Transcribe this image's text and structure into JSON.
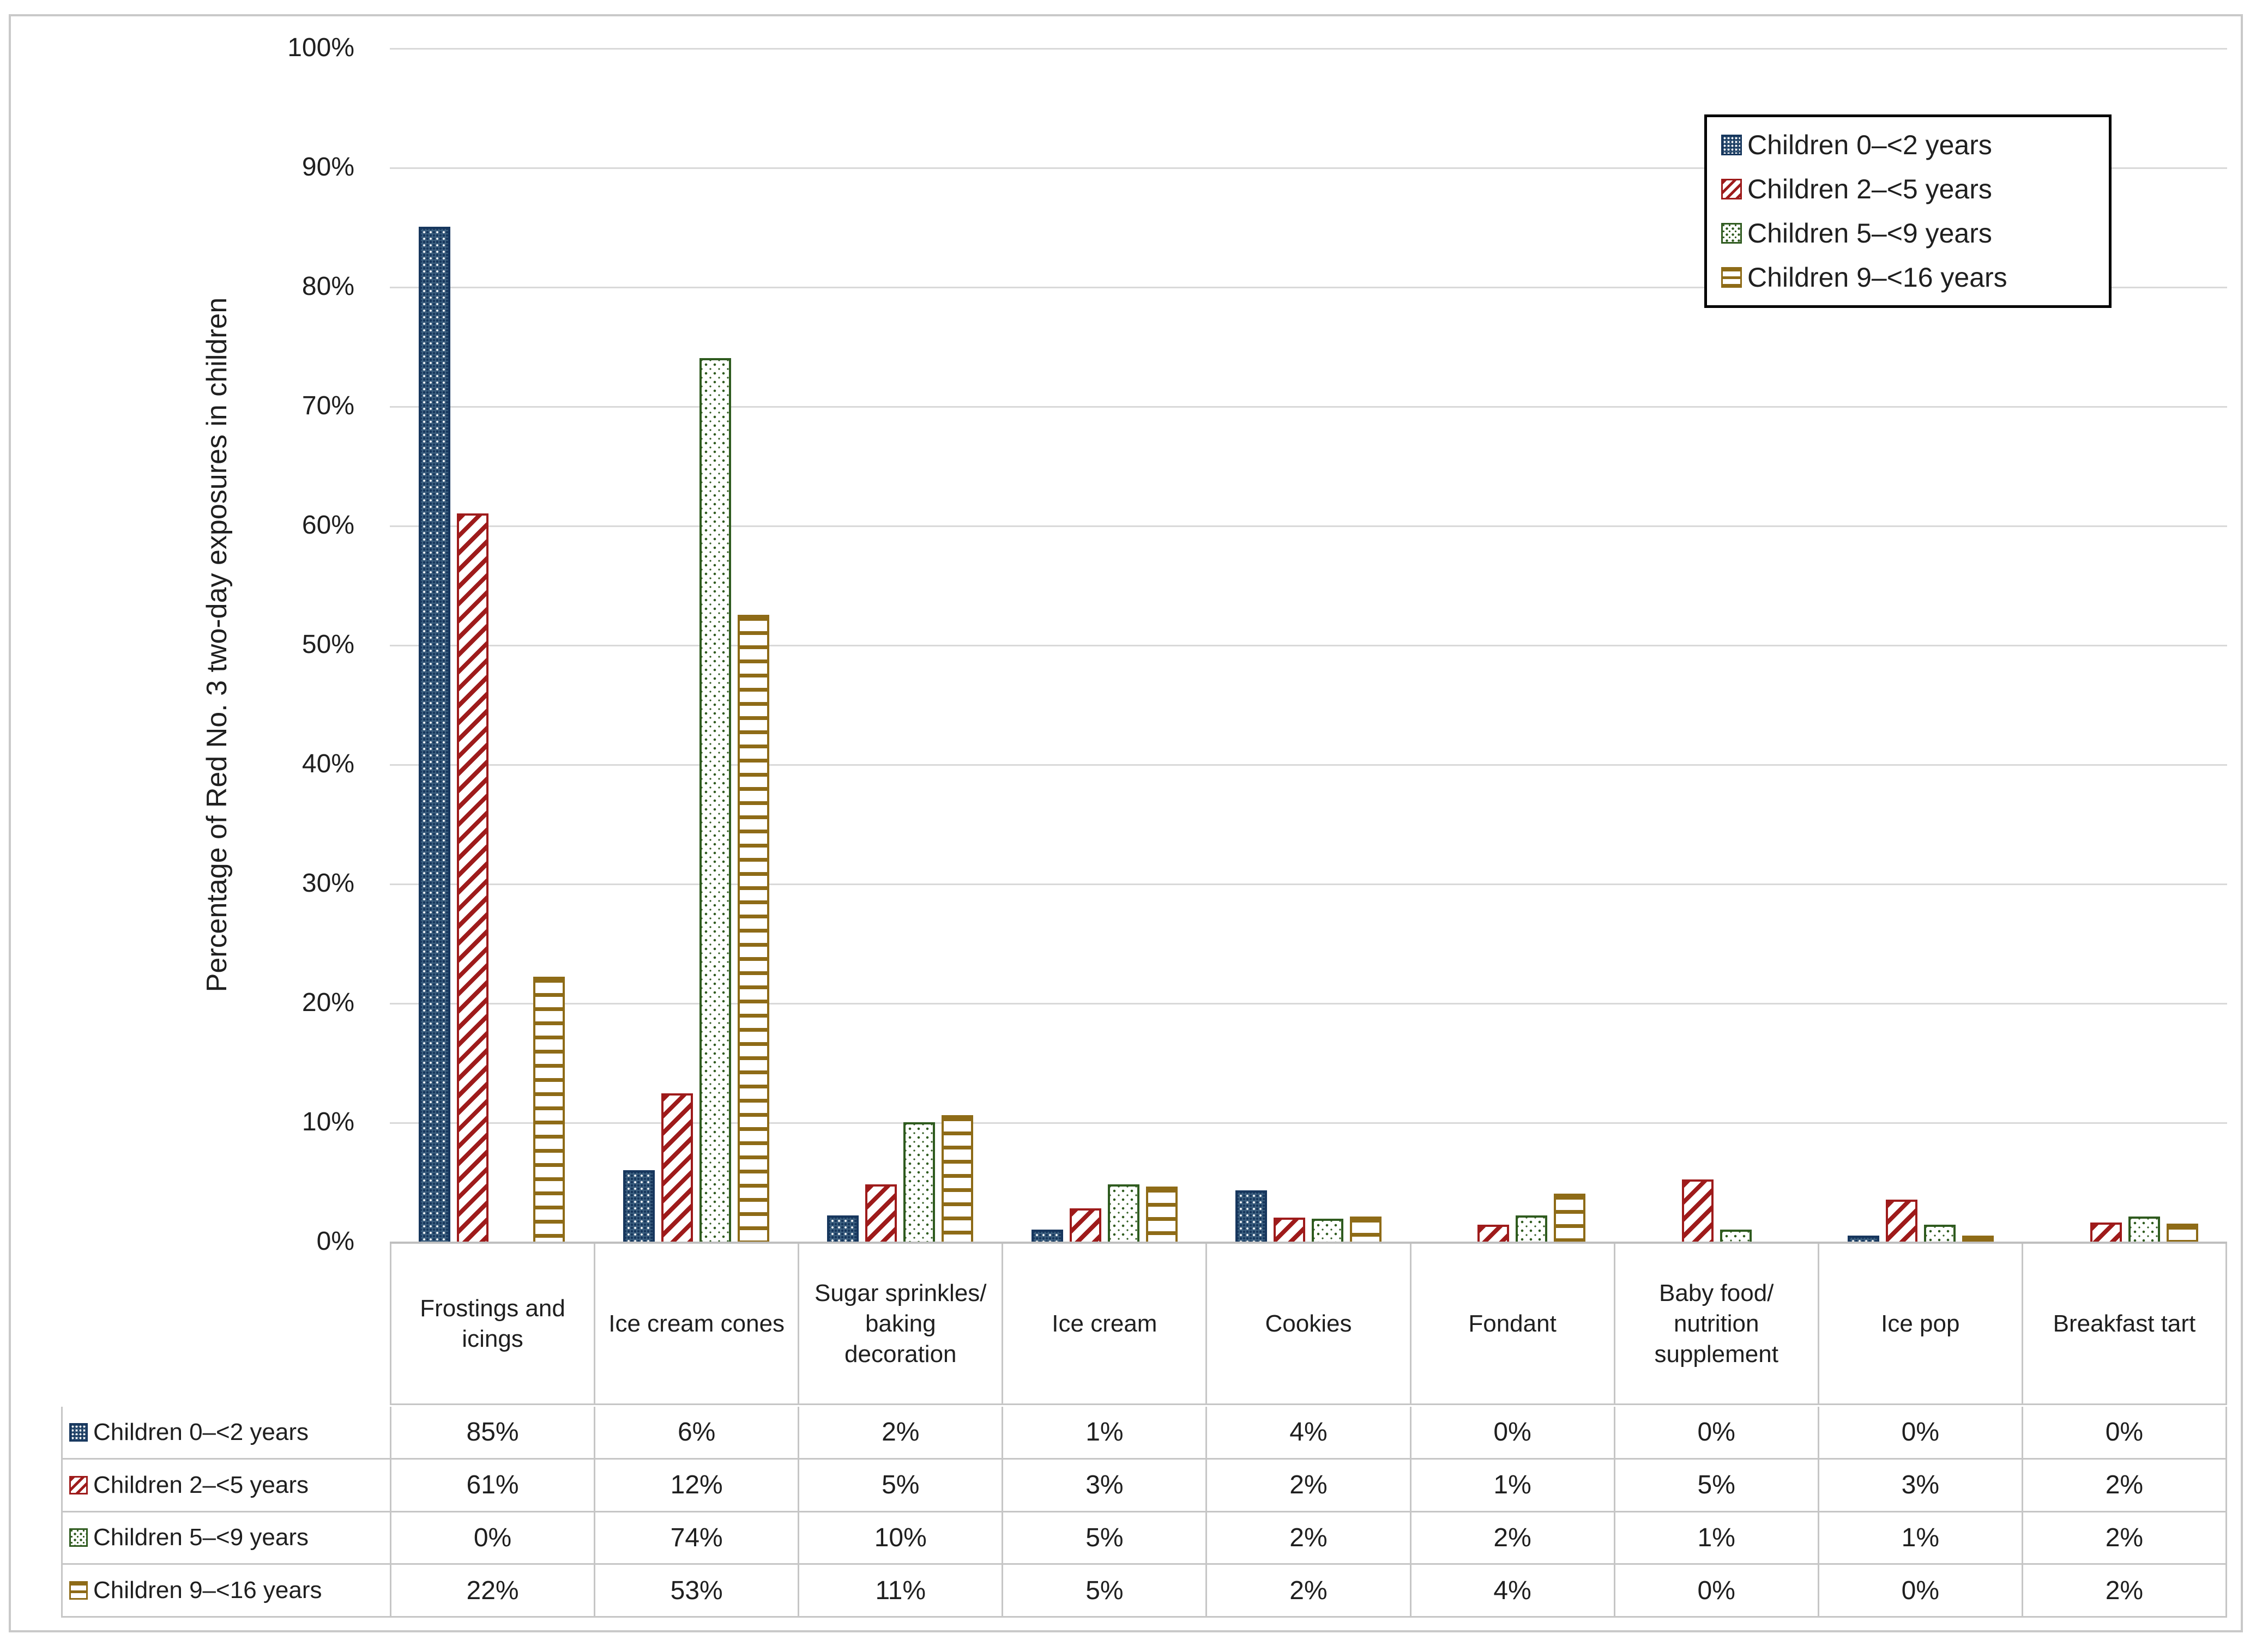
{
  "chart_data": {
    "type": "bar",
    "title": "",
    "xlabel": "",
    "ylabel": "Percentage of Red No. 3 two-day exposures in children",
    "ylim": [
      0,
      100
    ],
    "yticks": [
      "100%",
      "90%",
      "80%",
      "70%",
      "60%",
      "50%",
      "40%",
      "30%",
      "20%",
      "10%",
      "0%"
    ],
    "grid": "horizontal",
    "legend_position": "top-right",
    "categories": [
      "Frostings and icings",
      "Ice cream cones",
      "Sugar sprinkles/ baking decoration",
      "Ice cream",
      "Cookies",
      "Fondant",
      "Baby food/ nutrition supplement",
      "Ice pop",
      "Breakfast tart"
    ],
    "series": [
      {
        "name": "Children 0–<2 years",
        "key": "blue",
        "color": "#17375E",
        "pattern": "navy-dotted-grid",
        "values": [
          85,
          6,
          2.2,
          1,
          4.3,
          0,
          0,
          0.5,
          0
        ]
      },
      {
        "name": "Children 2–<5 years",
        "key": "red",
        "color": "#9E1B1B",
        "pattern": "red-diagonal-stripes",
        "values": [
          61,
          12.4,
          4.8,
          2.8,
          2,
          1.4,
          5.2,
          3.5,
          1.6
        ]
      },
      {
        "name": "Children 5–<9 years",
        "key": "green",
        "color": "#2F5B1F",
        "pattern": "green-dots",
        "values": [
          0,
          74,
          10,
          4.8,
          1.9,
          2.2,
          1,
          1.4,
          2.1
        ]
      },
      {
        "name": "Children 9–<16 years",
        "key": "gold",
        "color": "#8E6B17",
        "pattern": "gold-horizontal-stripes",
        "values": [
          22.2,
          52.5,
          10.6,
          4.6,
          2.1,
          4,
          0,
          0.5,
          1.5
        ]
      }
    ]
  },
  "legend": {
    "items": [
      "Children 0–<2 years",
      "Children 2–<5 years",
      "Children 5–<9 years",
      "Children 9–<16 years"
    ]
  },
  "data_table": {
    "columns": [
      "Frostings and icings",
      "Ice cream cones",
      "Sugar sprinkles/ baking decoration",
      "Ice cream",
      "Cookies",
      "Fondant",
      "Baby food/ nutrition supplement",
      "Ice pop",
      "Breakfast tart"
    ],
    "rows": [
      {
        "label": "Children 0–<2 years",
        "key": "blue",
        "values": [
          "85%",
          "6%",
          "2%",
          "1%",
          "4%",
          "0%",
          "0%",
          "0%",
          "0%"
        ]
      },
      {
        "label": "Children 2–<5 years",
        "key": "red",
        "values": [
          "61%",
          "12%",
          "5%",
          "3%",
          "2%",
          "1%",
          "5%",
          "3%",
          "2%"
        ]
      },
      {
        "label": "Children 5–<9 years",
        "key": "green",
        "values": [
          "0%",
          "74%",
          "10%",
          "5%",
          "2%",
          "2%",
          "1%",
          "1%",
          "2%"
        ]
      },
      {
        "label": "Children 9–<16 years",
        "key": "gold",
        "values": [
          "22%",
          "53%",
          "11%",
          "5%",
          "2%",
          "4%",
          "0%",
          "0%",
          "2%"
        ]
      }
    ]
  },
  "colors": {
    "gridline": "#D9D9D9",
    "axis_baseline": "#BFBFBF",
    "table_border": "#C6C6C6",
    "legend_border": "#000000",
    "text": "#1F1F1F"
  }
}
